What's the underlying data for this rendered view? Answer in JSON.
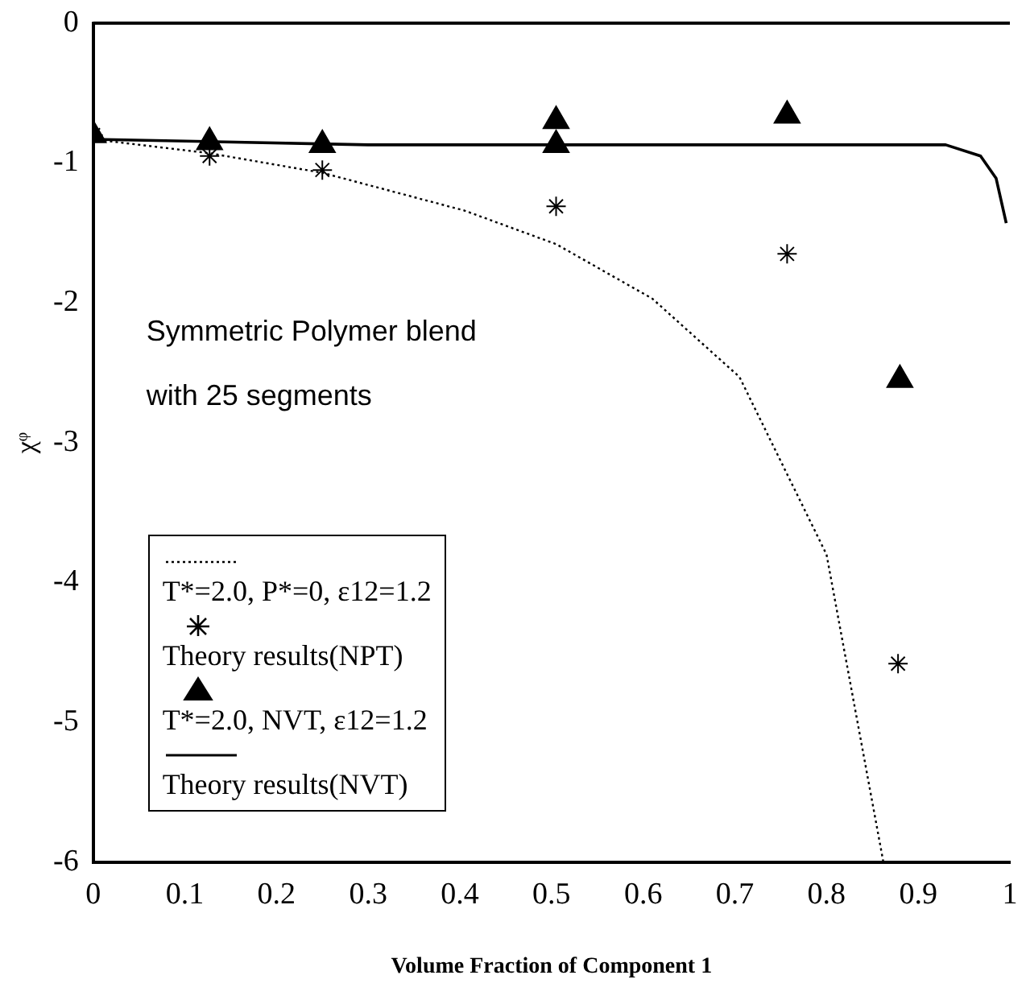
{
  "chart_data": {
    "type": "scatter",
    "xlabel": "Volume Fraction of Component 1",
    "ylabel": "χᵠ",
    "xlim": [
      0,
      1
    ],
    "xticks": [
      0,
      0.1,
      0.2,
      0.3,
      0.4,
      0.5,
      0.6,
      0.7,
      0.8,
      0.9,
      1
    ],
    "ylim": [
      -6,
      0
    ],
    "yticks": [
      -6,
      -5,
      -4,
      -3,
      -2,
      -1,
      0
    ],
    "grid": false,
    "legend": "bottom left",
    "annotations": [
      "Symmetric Polymer blend",
      "with 25 segments"
    ],
    "series": [
      {
        "name": "T*=2.0, P*=0, ε12=1.2",
        "type": "line",
        "color": "#000000",
        "marker": "none",
        "line_style": "dotted",
        "x": [
          0,
          0.127,
          0.25,
          0.405,
          0.505,
          0.61,
          0.705,
          0.8,
          0.862
        ],
        "values": [
          -0.83,
          -0.93,
          -1.07,
          -1.34,
          -1.58,
          -1.97,
          -2.53,
          -3.8,
          -6
        ]
      },
      {
        "name": "Theory results(NPT)",
        "type": "scatter",
        "color": "#000000",
        "marker": "cross",
        "x": [
          0,
          0.127,
          0.25,
          0.505,
          0.757,
          0.878
        ],
        "values": [
          -0.8,
          -0.95,
          -1.05,
          -1.31,
          -1.65,
          -4.58
        ]
      },
      {
        "name": "T*=2.0, NVT, ε12=1.2",
        "type": "scatter",
        "color": "#000000",
        "marker": "triangle",
        "x": [
          0,
          0.127,
          0.25,
          0.505,
          0.505,
          0.757,
          0.88
        ],
        "values": [
          -0.8,
          -0.85,
          -0.87,
          -0.7,
          -0.87,
          -0.66,
          -2.55
        ]
      },
      {
        "name": "Theory results(NVT)",
        "type": "line",
        "color": "#000000",
        "marker": "none",
        "line_style": "solid",
        "x": [
          0,
          0.3,
          0.6,
          0.93,
          0.968,
          0.985,
          0.996
        ],
        "values": [
          -0.83,
          -0.87,
          -0.87,
          -0.87,
          -0.95,
          -1.11,
          -1.43
        ]
      }
    ]
  }
}
